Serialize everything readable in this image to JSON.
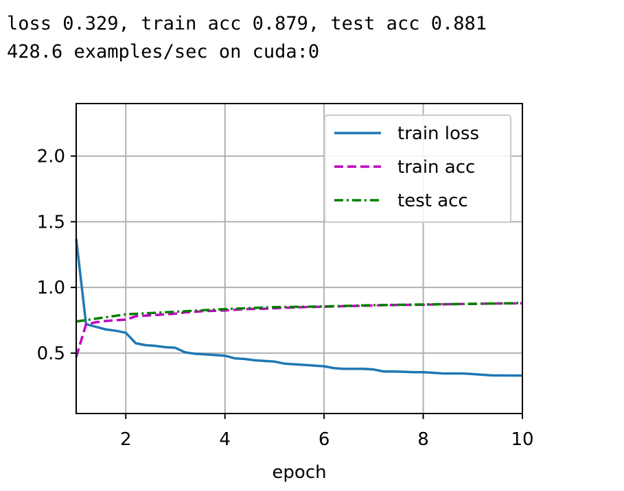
{
  "log_lines": [
    "loss 0.329, train acc 0.879, test acc 0.881",
    "428.6 examples/sec on cuda:0"
  ],
  "chart_data": {
    "type": "line",
    "title": "",
    "xlabel": "epoch",
    "ylabel": "",
    "xlim": [
      1,
      10
    ],
    "ylim": [
      0.04,
      2.4
    ],
    "xticks": [
      2,
      4,
      6,
      8,
      10
    ],
    "xtick_labels": [
      "2",
      "4",
      "6",
      "8",
      "10"
    ],
    "yticks": [
      0.5,
      1.0,
      1.5,
      2.0
    ],
    "ytick_labels": [
      "0.5",
      "1.0",
      "1.5",
      "2.0"
    ],
    "grid": true,
    "legend_position": "top-right",
    "series": [
      {
        "name": "train loss",
        "color": "#1f77b4",
        "dash": "solid",
        "x": [
          1.0,
          1.2,
          1.4,
          1.6,
          1.8,
          2.0,
          2.2,
          2.4,
          2.6,
          2.8,
          3.0,
          3.2,
          3.4,
          3.6,
          3.8,
          4.0,
          4.2,
          4.4,
          4.6,
          4.8,
          5.0,
          5.2,
          5.4,
          5.6,
          5.8,
          6.0,
          6.2,
          6.4,
          6.6,
          6.8,
          7.0,
          7.2,
          7.4,
          7.6,
          7.8,
          8.0,
          8.2,
          8.4,
          8.6,
          8.8,
          9.0,
          9.2,
          9.4,
          9.6,
          9.8,
          10.0
        ],
        "y": [
          1.37,
          0.72,
          0.7,
          0.68,
          0.67,
          0.655,
          0.575,
          0.56,
          0.555,
          0.545,
          0.54,
          0.505,
          0.495,
          0.49,
          0.485,
          0.48,
          0.46,
          0.455,
          0.445,
          0.44,
          0.435,
          0.42,
          0.415,
          0.41,
          0.405,
          0.4,
          0.385,
          0.38,
          0.38,
          0.38,
          0.375,
          0.36,
          0.36,
          0.358,
          0.355,
          0.355,
          0.35,
          0.345,
          0.345,
          0.345,
          0.34,
          0.335,
          0.33,
          0.33,
          0.329,
          0.329
        ]
      },
      {
        "name": "train acc",
        "color": "#bf00bf",
        "dash": "dashed",
        "x": [
          1.0,
          1.2,
          1.4,
          1.6,
          1.8,
          2.0,
          2.2,
          2.4,
          2.6,
          2.8,
          3.0,
          3.2,
          3.4,
          3.6,
          3.8,
          4.0,
          4.4,
          4.8,
          5.2,
          5.6,
          6.0,
          6.4,
          6.8,
          7.2,
          7.6,
          8.0,
          8.4,
          8.8,
          9.2,
          9.6,
          10.0
        ],
        "y": [
          0.47,
          0.72,
          0.735,
          0.745,
          0.75,
          0.755,
          0.78,
          0.785,
          0.79,
          0.795,
          0.8,
          0.81,
          0.815,
          0.82,
          0.822,
          0.825,
          0.835,
          0.838,
          0.845,
          0.85,
          0.853,
          0.857,
          0.86,
          0.865,
          0.867,
          0.868,
          0.872,
          0.874,
          0.876,
          0.878,
          0.879
        ]
      },
      {
        "name": "test acc",
        "color": "#007f00",
        "dash": "dashdot",
        "x": [
          1,
          2,
          3,
          4,
          5,
          6,
          7,
          8,
          9,
          10
        ],
        "y": [
          0.74,
          0.795,
          0.815,
          0.835,
          0.85,
          0.855,
          0.865,
          0.87,
          0.875,
          0.881
        ]
      }
    ]
  }
}
